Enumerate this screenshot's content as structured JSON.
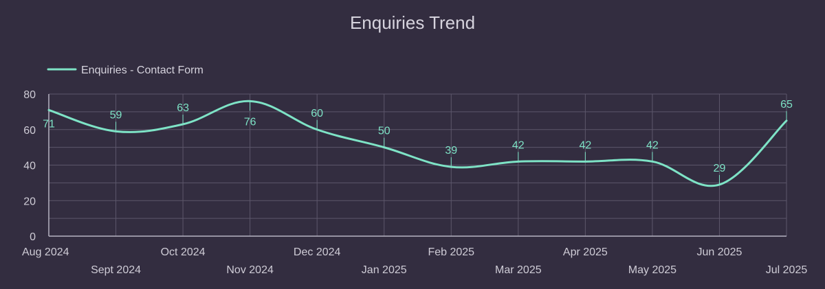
{
  "colors": {
    "background": "#332d40",
    "line": "#7ee3c6",
    "grid": "#5d576b",
    "text": "#d6d3dd"
  },
  "chart_data": {
    "type": "line",
    "title": "Enquiries Trend",
    "xlabel": "",
    "ylabel": "",
    "categories": [
      "Aug 2024",
      "Sept 2024",
      "Oct 2024",
      "Nov 2024",
      "Dec 2024",
      "Jan 2025",
      "Feb 2025",
      "Mar 2025",
      "Apr 2025",
      "May 2025",
      "Jun 2025",
      "Jul 2025"
    ],
    "series": [
      {
        "name": "Enquiries - Contact Form",
        "values": [
          71,
          59,
          63,
          76,
          60,
          50,
          39,
          42,
          42,
          42,
          29,
          65
        ]
      }
    ],
    "ylim": [
      0,
      80
    ],
    "yticks": [
      0,
      20,
      40,
      60,
      80
    ],
    "grid": true,
    "legend": "top-left",
    "smooth": true,
    "data_labels": true
  }
}
